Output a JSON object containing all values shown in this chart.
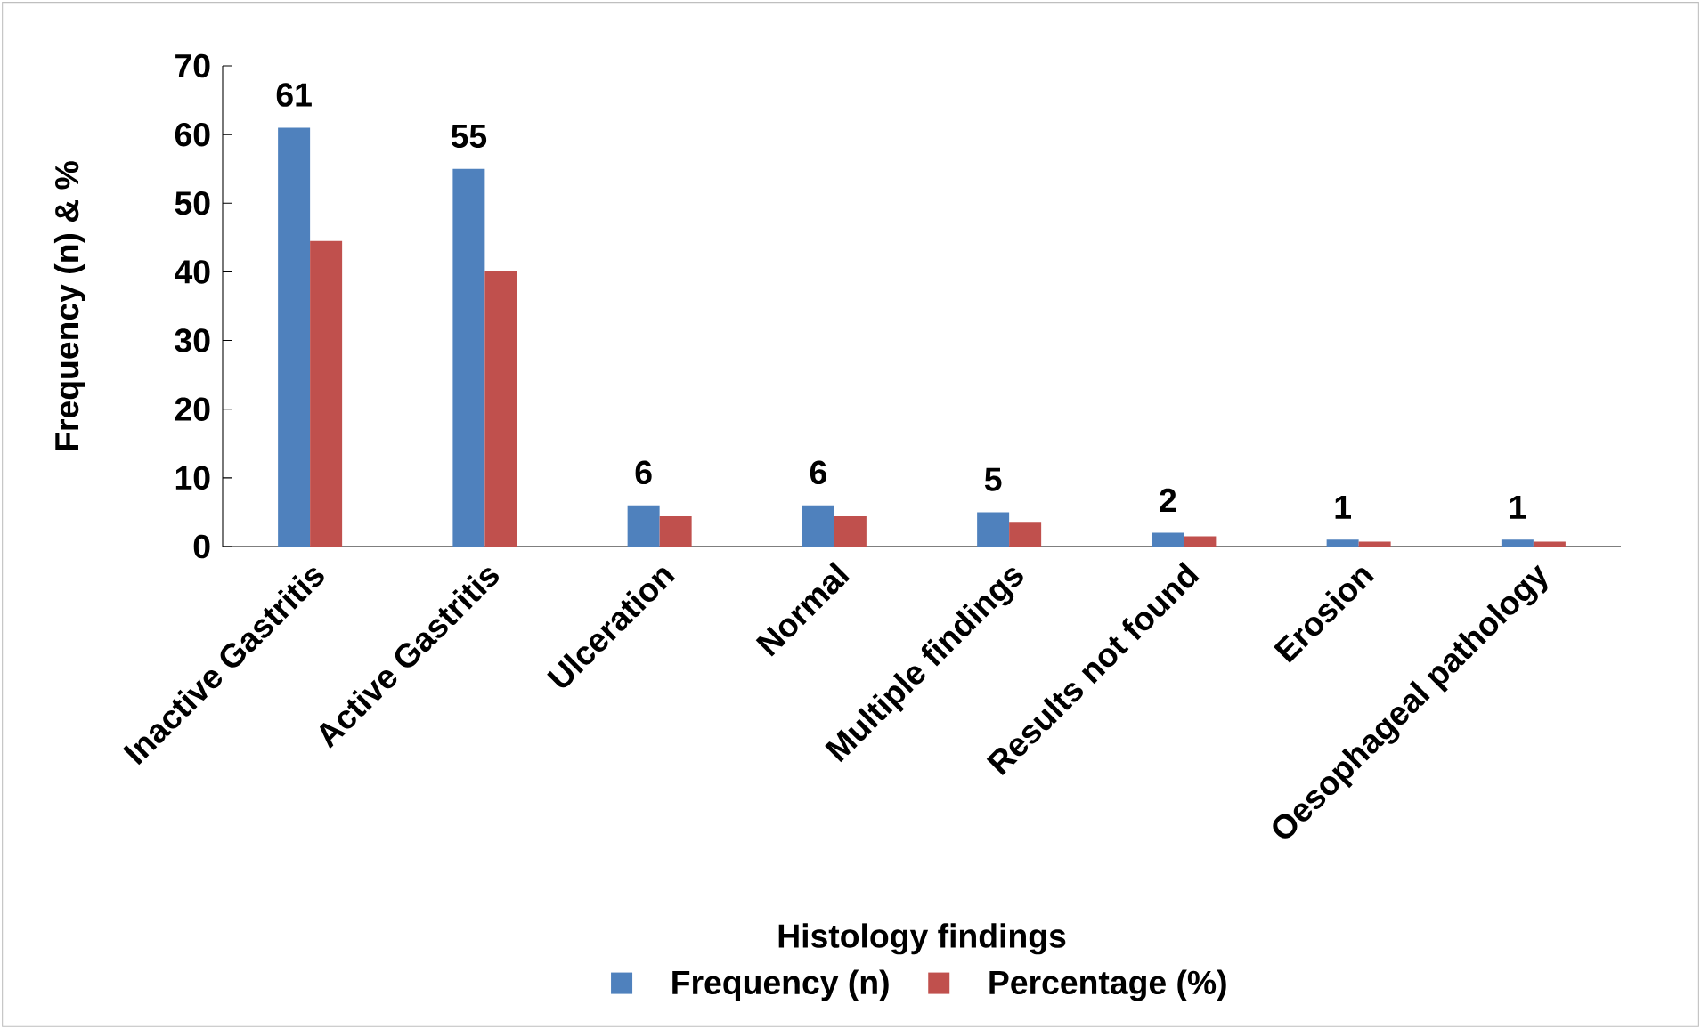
{
  "chart_data": {
    "type": "bar",
    "xlabel": "Histology findings",
    "ylabel": "Frequency (n) & %",
    "categories": [
      "Inactive Gastritis",
      "Active Gastritis",
      "Ulceration",
      "Normal",
      "Multiple findings",
      "Results not found",
      "Erosion",
      "Oesophageal pathology"
    ],
    "series": [
      {
        "name": "Frequency (n)",
        "color": "#4f81bd",
        "values": [
          61,
          55,
          6,
          6,
          5,
          2,
          1,
          1
        ],
        "value_labels": [
          "61",
          "55",
          "6",
          "6",
          "5",
          "2",
          "1",
          "1"
        ]
      },
      {
        "name": "Percentage (%)",
        "color": "#c0504d",
        "values": [
          44.5,
          40.1,
          4.4,
          4.4,
          3.6,
          1.5,
          0.7,
          0.7
        ]
      }
    ],
    "ylim": [
      0,
      70
    ],
    "yticks": [
      0,
      10,
      20,
      30,
      40,
      50,
      60,
      70
    ],
    "legend": "bottom"
  }
}
